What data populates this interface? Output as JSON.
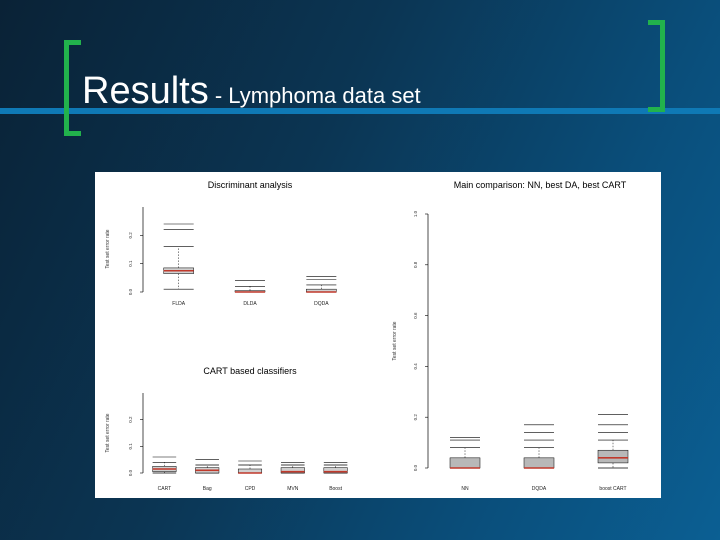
{
  "slide": {
    "title_main": "Results",
    "title_sub": " - Lymphoma data set",
    "colors": {
      "accent": "#22b24c",
      "stripe": "#0f79b5"
    }
  },
  "chart_data": [
    {
      "type": "box",
      "title": "Discriminant analysis",
      "ylabel": "Test set error rate",
      "ylim": [
        0.0,
        0.3
      ],
      "yticks": [
        0.0,
        0.1,
        0.2
      ],
      "yticklabels": [
        "0.0",
        "0.1",
        "0.2"
      ],
      "categories": [
        "FLDA",
        "DLDA",
        "DQDA"
      ],
      "boxes": [
        {
          "lower_whisker": 0.01,
          "q1": 0.065,
          "median": 0.075,
          "q3": 0.085,
          "upper_whisker": 0.16,
          "outliers": [
            0.22,
            0.24
          ],
          "fill": "#d0d0d0"
        },
        {
          "lower_whisker": 0.0,
          "q1": 0.0,
          "median": 0.0,
          "q3": 0.005,
          "upper_whisker": 0.02,
          "outliers": [
            0.04
          ],
          "fill": "#d0d0d0"
        },
        {
          "lower_whisker": 0.0,
          "q1": 0.0,
          "median": 0.0,
          "q3": 0.01,
          "upper_whisker": 0.025,
          "outliers": [
            0.045,
            0.055
          ],
          "fill": "#d0d0d0"
        }
      ]
    },
    {
      "type": "box",
      "title": "CART based classifiers",
      "ylabel": "Test set error rate",
      "ylim": [
        0.0,
        0.3
      ],
      "yticks": [
        0.0,
        0.1,
        0.2
      ],
      "yticklabels": [
        "0.0",
        "0.1",
        "0.2"
      ],
      "categories": [
        "CART",
        "Bag",
        "CPD",
        "MVN",
        "Boost"
      ],
      "boxes": [
        {
          "lower_whisker": 0.0,
          "q1": 0.005,
          "median": 0.015,
          "q3": 0.025,
          "upper_whisker": 0.04,
          "outliers": [
            0.06
          ],
          "fill": "#d0d0d0"
        },
        {
          "lower_whisker": 0.0,
          "q1": 0.0,
          "median": 0.01,
          "q3": 0.02,
          "upper_whisker": 0.03,
          "outliers": [
            0.05
          ],
          "fill": "#d0d0d0"
        },
        {
          "lower_whisker": 0.0,
          "q1": 0.0,
          "median": 0.0,
          "q3": 0.015,
          "upper_whisker": 0.03,
          "outliers": [
            0.045
          ],
          "fill": "#d0d0d0"
        },
        {
          "lower_whisker": 0.0,
          "q1": 0.0,
          "median": 0.005,
          "q3": 0.02,
          "upper_whisker": 0.03,
          "outliers": [
            0.04
          ],
          "fill": "#d0d0d0"
        },
        {
          "lower_whisker": 0.0,
          "q1": 0.0,
          "median": 0.005,
          "q3": 0.02,
          "upper_whisker": 0.03,
          "outliers": [
            0.04
          ],
          "fill": "#d0d0d0"
        }
      ]
    },
    {
      "type": "box",
      "title": "Main comparison: NN, best DA, best CART",
      "ylabel": "Test set error rate",
      "ylim": [
        0.0,
        1.0
      ],
      "yticks": [
        0.0,
        0.2,
        0.4,
        0.6,
        0.8,
        1.0
      ],
      "yticklabels": [
        "0.0",
        "0.2",
        "0.4",
        "0.6",
        "0.8",
        "1.0"
      ],
      "categories": [
        "NN",
        "DQDA",
        "boost CART"
      ],
      "boxes": [
        {
          "lower_whisker": 0.0,
          "q1": 0.0,
          "median": 0.0,
          "q3": 0.04,
          "upper_whisker": 0.08,
          "outliers": [
            0.11,
            0.12
          ],
          "fill": "#b8b8b8"
        },
        {
          "lower_whisker": 0.0,
          "q1": 0.0,
          "median": 0.0,
          "q3": 0.04,
          "upper_whisker": 0.08,
          "outliers": [
            0.11,
            0.14,
            0.17
          ],
          "fill": "#b8b8b8"
        },
        {
          "lower_whisker": 0.0,
          "q1": 0.02,
          "median": 0.04,
          "q3": 0.07,
          "upper_whisker": 0.11,
          "outliers": [
            0.14,
            0.17,
            0.21
          ],
          "fill": "#b8b8b8"
        }
      ]
    }
  ]
}
